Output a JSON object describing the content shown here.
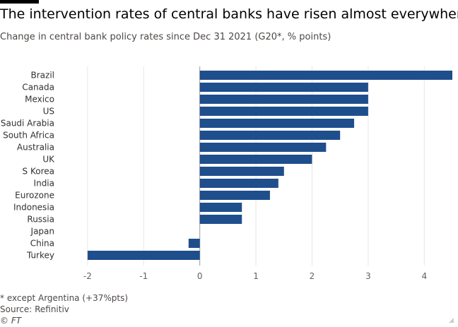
{
  "header": {
    "title": "The intervention rates of central banks have risen almost everywhere",
    "subtitle": "Change in central bank policy rates since Dec 31 2021 (G20*, % points)"
  },
  "footer": {
    "footnote": "* except Argentina (+37%pts)",
    "source": "Source: Refinitiv",
    "credit": "© FT"
  },
  "chart_data": {
    "type": "bar",
    "orientation": "horizontal",
    "title": "",
    "xlabel": "",
    "ylabel": "",
    "categories": [
      "Brazil",
      "Canada",
      "Mexico",
      "US",
      "Saudi Arabia",
      "South Africa",
      "Australia",
      "UK",
      "S Korea",
      "India",
      "Eurozone",
      "Indonesia",
      "Russia",
      "Japan",
      "China",
      "Turkey"
    ],
    "values": [
      4.5,
      3.0,
      3.0,
      3.0,
      2.75,
      2.5,
      2.25,
      2.0,
      1.5,
      1.4,
      1.25,
      0.75,
      0.75,
      0,
      -0.2,
      -2.0
    ],
    "xlim": [
      -2.2,
      4.5
    ],
    "xticks": [
      -2,
      -1,
      0,
      1,
      2,
      3,
      4
    ],
    "grid": true,
    "bar_color": "#1f4e8c",
    "grid_color": "#e6e6e6"
  }
}
